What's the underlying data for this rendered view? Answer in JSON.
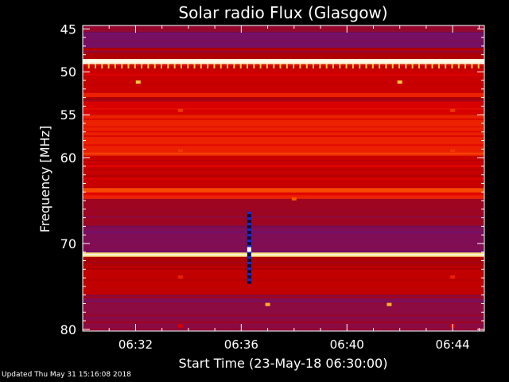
{
  "chart_data": {
    "type": "heatmap",
    "title": "Solar radio Flux (Glasgow)",
    "xlabel": "Start Time (23-May-18 06:30:00)",
    "ylabel": "Frequency [MHz]",
    "x_unit": "minutes after 06:30:00",
    "xlim": [
      0,
      15.2
    ],
    "ylim": [
      80.2,
      44.6
    ],
    "y_inverted": true,
    "xticks": [
      {
        "value": 2,
        "label": "06:32"
      },
      {
        "value": 6,
        "label": "06:36"
      },
      {
        "value": 10,
        "label": "06:40"
      },
      {
        "value": 14,
        "label": "06:44"
      }
    ],
    "yticks": [
      {
        "value": 45,
        "label": "45"
      },
      {
        "value": 50,
        "label": "50"
      },
      {
        "value": 55,
        "label": "55"
      },
      {
        "value": 60,
        "label": "60"
      },
      {
        "value": 70,
        "label": "70"
      },
      {
        "value": 80,
        "label": "80"
      }
    ],
    "colormap": [
      "#1a0a60",
      "#3a1ab0",
      "#7a1060",
      "#b00000",
      "#e00000",
      "#ff6000",
      "#ffd040",
      "#ffffff"
    ],
    "background_bands": [
      {
        "from": 44.6,
        "to": 45.4,
        "level": 0.35
      },
      {
        "from": 45.4,
        "to": 47.2,
        "level": 0.28
      },
      {
        "from": 47.2,
        "to": 48.6,
        "level": 0.42
      },
      {
        "from": 48.6,
        "to": 49.2,
        "level": 0.55
      },
      {
        "from": 49.2,
        "to": 52.6,
        "level": 0.5
      },
      {
        "from": 52.6,
        "to": 53.3,
        "level": 0.4
      },
      {
        "from": 53.3,
        "to": 55.0,
        "level": 0.55
      },
      {
        "from": 55.0,
        "to": 59.8,
        "level": 0.62
      },
      {
        "from": 59.8,
        "to": 63.5,
        "level": 0.5
      },
      {
        "from": 63.5,
        "to": 64.4,
        "level": 0.58
      },
      {
        "from": 64.4,
        "to": 68.0,
        "level": 0.38
      },
      {
        "from": 68.0,
        "to": 71.5,
        "level": 0.3
      },
      {
        "from": 71.5,
        "to": 73.0,
        "level": 0.42
      },
      {
        "from": 73.0,
        "to": 76.0,
        "level": 0.48
      },
      {
        "from": 76.0,
        "to": 80.2,
        "level": 0.33
      }
    ],
    "hot_lines": [
      {
        "freq": 48.8,
        "level": 0.97,
        "width": 0.3
      },
      {
        "freq": 71.3,
        "level": 0.9,
        "width": 0.25
      },
      {
        "freq": 52.7,
        "level": 0.62,
        "width": 0.25
      },
      {
        "freq": 63.8,
        "level": 0.68,
        "width": 0.25
      },
      {
        "freq": 64.6,
        "level": 0.62,
        "width": 0.2
      }
    ],
    "spots": [
      {
        "t": 2.1,
        "freq": 51.2,
        "level": 0.85
      },
      {
        "t": 12.0,
        "freq": 51.2,
        "level": 0.85
      },
      {
        "t": 3.7,
        "freq": 54.5,
        "level": 0.65
      },
      {
        "t": 3.7,
        "freq": 59.2,
        "level": 0.65
      },
      {
        "t": 14.0,
        "freq": 54.5,
        "level": 0.65
      },
      {
        "t": 14.0,
        "freq": 59.2,
        "level": 0.65
      },
      {
        "t": 8.0,
        "freq": 64.8,
        "level": 0.7
      },
      {
        "t": 3.7,
        "freq": 73.9,
        "level": 0.62
      },
      {
        "t": 14.0,
        "freq": 73.9,
        "level": 0.62
      },
      {
        "t": 7.0,
        "freq": 77.1,
        "level": 0.82
      },
      {
        "t": 11.6,
        "freq": 77.1,
        "level": 0.82
      },
      {
        "t": 3.7,
        "freq": 79.6,
        "level": 0.55
      },
      {
        "t": 14.0,
        "freq": 79.6,
        "level": 0.55
      }
    ],
    "dropout": {
      "t": 6.3,
      "freq_from": 66.3,
      "freq_to": 74.7
    }
  },
  "footer": {
    "updated": "Updated Thu May 31 15:16:08 2018"
  }
}
